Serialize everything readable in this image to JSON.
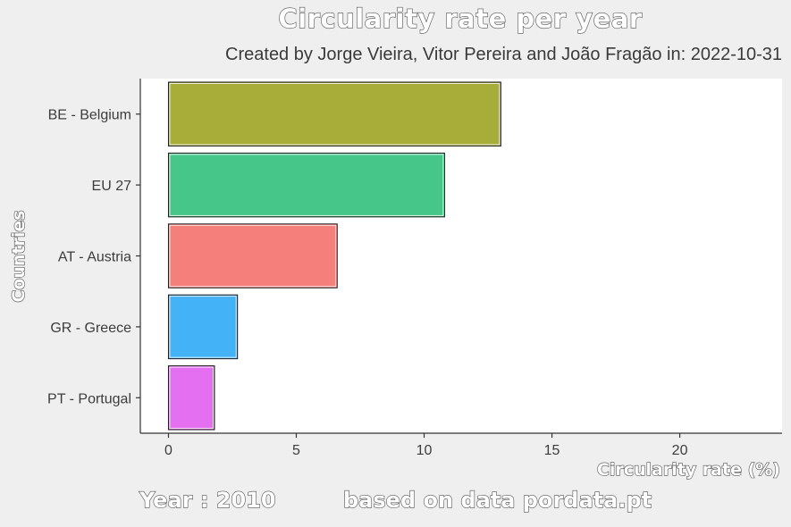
{
  "chart_data": {
    "type": "bar",
    "orientation": "horizontal",
    "title": "Circularity rate per year",
    "subtitle": "Created by Jorge Vieira, Vitor Pereira and João Fragão in:  2022-10-31",
    "xlabel": "Circularity rate (%)",
    "ylabel": "Countries",
    "categories": [
      "BE - Belgium",
      "EU 27",
      "AT - Austria",
      "GR - Greece",
      "PT - Portugal"
    ],
    "values": [
      13.0,
      10.8,
      6.6,
      2.7,
      1.8
    ],
    "colors": [
      "#a8ad3a",
      "#47c689",
      "#f57f7a",
      "#44b2f6",
      "#e46ff0"
    ],
    "xlim": [
      -1.1,
      24
    ],
    "xticks": [
      0,
      5,
      10,
      15,
      20
    ],
    "grid": false,
    "legend": "none"
  },
  "caption": {
    "year": "Year : 2010",
    "source": "based on data pordata.pt"
  }
}
